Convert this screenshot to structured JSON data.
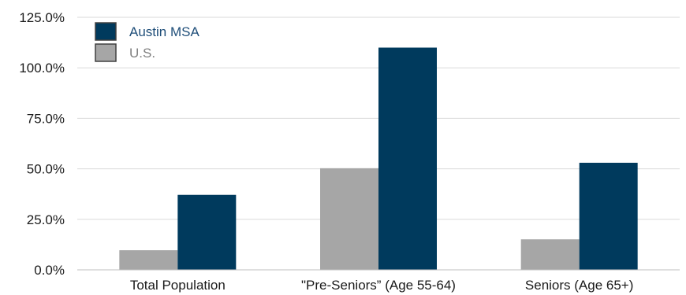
{
  "chart_data": {
    "type": "bar",
    "categories": [
      "Total Population",
      "\"Pre-Seniors” (Age 55-64)",
      "Seniors (Age 65+)"
    ],
    "series": [
      {
        "name": "U.S.",
        "values": [
          9.7,
          50.3,
          15.1
        ],
        "color": "#a6a6a6"
      },
      {
        "name": "Austin MSA",
        "values": [
          37.1,
          110.0,
          53.0
        ],
        "color": "#003a5d"
      }
    ],
    "legend_order": [
      "Austin MSA",
      "U.S."
    ],
    "legend_text_colors": {
      "Austin MSA": "#1f4e79",
      "U.S.": "#7f7f7f"
    },
    "y_tick_labels": [
      "0.0%",
      "25.0%",
      "50.0%",
      "75.0%",
      "100.0%",
      "125.0%"
    ],
    "ylim": [
      0,
      125
    ],
    "y_unit": "percent",
    "grid": true,
    "legend_position": "top-left",
    "title": "",
    "xlabel": "",
    "ylabel": ""
  }
}
